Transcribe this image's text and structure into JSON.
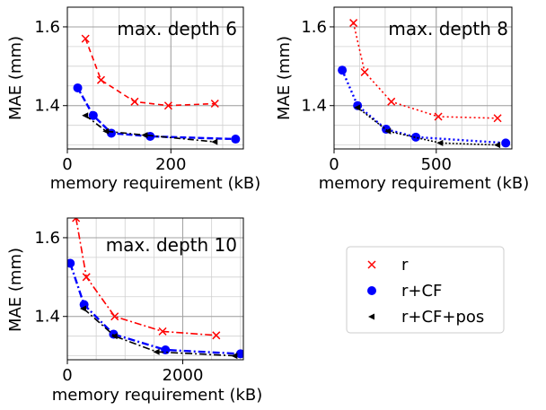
{
  "chart_data": [
    {
      "type": "line",
      "annotation": "max. depth 6",
      "xlabel": "memory requirement (kB)",
      "ylabel": "MAE (mm)",
      "xlim": [
        0,
        340
      ],
      "ylim": [
        1.29,
        1.65
      ],
      "xticks": [
        0,
        200
      ],
      "yticks": [
        1.4,
        1.6
      ],
      "series": [
        {
          "key": "r",
          "x": [
            35,
            65,
            130,
            195,
            285
          ],
          "y": [
            1.57,
            1.465,
            1.41,
            1.4,
            1.405
          ]
        },
        {
          "key": "rcf",
          "x": [
            20,
            50,
            85,
            160,
            325
          ],
          "y": [
            1.445,
            1.375,
            1.33,
            1.322,
            1.315
          ]
        },
        {
          "key": "rcfpos",
          "x": [
            35,
            75,
            150,
            285
          ],
          "y": [
            1.375,
            1.335,
            1.325,
            1.308
          ]
        }
      ]
    },
    {
      "type": "line",
      "annotation": "max. depth 8",
      "xlabel": "memory requirement (kB)",
      "ylabel": "MAE (mm)",
      "xlim": [
        0,
        870
      ],
      "ylim": [
        1.29,
        1.65
      ],
      "xticks": [
        0,
        500
      ],
      "yticks": [
        1.4,
        1.6
      ],
      "series": [
        {
          "key": "r",
          "x": [
            95,
            150,
            280,
            510,
            800
          ],
          "y": [
            1.61,
            1.485,
            1.41,
            1.372,
            1.368
          ]
        },
        {
          "key": "rcf",
          "x": [
            40,
            115,
            255,
            400,
            840
          ],
          "y": [
            1.49,
            1.4,
            1.34,
            1.32,
            1.305
          ]
        },
        {
          "key": "rcfpos",
          "x": [
            115,
            265,
            520,
            800
          ],
          "y": [
            1.395,
            1.335,
            1.305,
            1.3
          ]
        }
      ]
    },
    {
      "type": "line",
      "annotation": "max. depth 10",
      "xlabel": "memory requirement (kB)",
      "ylabel": "MAE (mm)",
      "xlim": [
        0,
        3050
      ],
      "ylim": [
        1.29,
        1.65
      ],
      "xticks": [
        0,
        2000
      ],
      "yticks": [
        1.4,
        1.6
      ],
      "series": [
        {
          "key": "r",
          "x": [
            150,
            330,
            820,
            1650,
            2580
          ],
          "y": [
            1.65,
            1.5,
            1.4,
            1.362,
            1.352
          ]
        },
        {
          "key": "rcf",
          "x": [
            50,
            290,
            800,
            1700,
            3000
          ],
          "y": [
            1.535,
            1.43,
            1.355,
            1.315,
            1.305
          ]
        },
        {
          "key": "rcfpos",
          "x": [
            280,
            820,
            1550,
            2900
          ],
          "y": [
            1.42,
            1.35,
            1.31,
            1.3
          ]
        }
      ]
    }
  ],
  "legend": {
    "placement": "right",
    "items": [
      {
        "key": "r",
        "label": "r",
        "color": "#ff0000"
      },
      {
        "key": "rcf",
        "label": "r+CF",
        "color": "#0000ff"
      },
      {
        "key": "rcfpos",
        "label": "r+CF+pos",
        "color": "#000000"
      }
    ]
  }
}
